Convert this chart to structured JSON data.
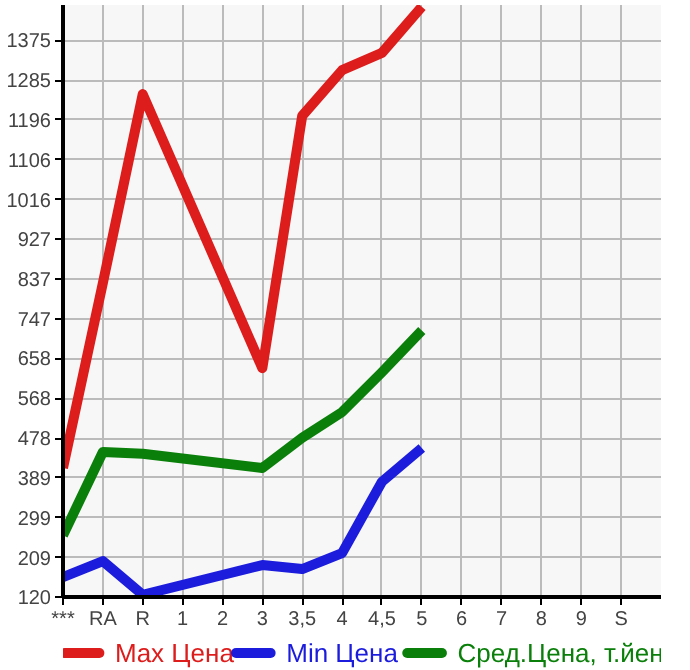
{
  "chart_data": {
    "type": "line",
    "categories": [
      "***",
      "RA",
      "R",
      "1",
      "2",
      "3",
      "3,5",
      "4",
      "4,5",
      "5",
      "6",
      "7",
      "8",
      "9",
      "S"
    ],
    "series": [
      {
        "name": "Max Цена",
        "color": "#dd1c1c",
        "values": [
          411,
          828,
          1254,
          null,
          null,
          636,
          1205,
          1308,
          1347,
          1451,
          null,
          null,
          null,
          null,
          null
        ]
      },
      {
        "name": "Min Цена",
        "color": "#1c1cdd",
        "values": [
          165,
          201,
          125,
          null,
          null,
          192,
          183,
          219,
          380,
          456,
          null,
          null,
          null,
          null,
          null
        ]
      },
      {
        "name": "Сред.Цена, т.йен",
        "color": "#0a7f0a",
        "values": [
          259,
          447,
          443,
          null,
          null,
          411,
          479,
          537,
          627,
          721,
          null,
          null,
          null,
          null,
          null
        ]
      }
    ],
    "ylim": [
      120,
      1455
    ],
    "yticks": [
      120,
      209,
      299,
      389,
      478,
      568,
      658,
      747,
      837,
      927,
      1016,
      1106,
      1196,
      1285,
      1375
    ],
    "grid": true,
    "legend": "bottom",
    "marker": "none",
    "line_style": "solid"
  }
}
